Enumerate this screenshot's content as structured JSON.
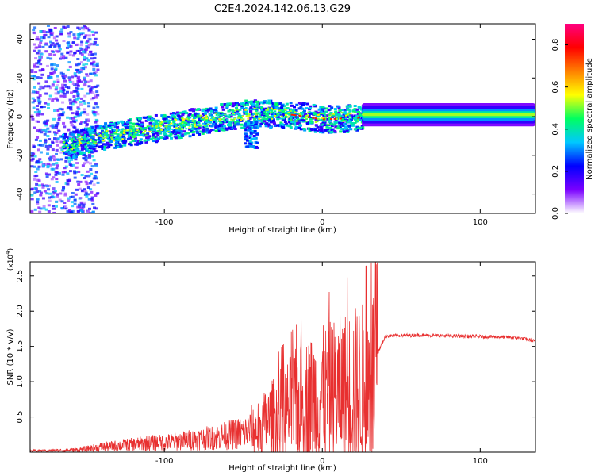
{
  "title": "C2E4.2024.142.06.13.G29",
  "chart_data": [
    {
      "type": "heatmap",
      "xlabel": "Height of straight line (km)",
      "ylabel": "Frequency (Hz)",
      "xlim": [
        -185,
        135
      ],
      "ylim": [
        -50,
        48
      ],
      "x_ticks": [
        -100,
        0,
        100
      ],
      "y_ticks": [
        -40,
        -20,
        0,
        20,
        40
      ],
      "colorbar": {
        "label": "Normalized spectral amplitude",
        "range": [
          0.0,
          0.9
        ],
        "ticks": [
          0.0,
          0.2,
          0.4,
          0.6,
          0.8
        ],
        "colors": [
          "#ffffff",
          "#7a00ff",
          "#0000ff",
          "#00c8ff",
          "#00ff60",
          "#ffff00",
          "#ff8000",
          "#ff0000",
          "#ff0080"
        ]
      },
      "ridge": [
        {
          "x": -165,
          "f": -15
        },
        {
          "x": -140,
          "f": -10
        },
        {
          "x": -110,
          "f": -6
        },
        {
          "x": -80,
          "f": -2
        },
        {
          "x": -50,
          "f": 2
        },
        {
          "x": -25,
          "f": 2
        },
        {
          "x": 0,
          "f": -1
        },
        {
          "x": 25,
          "f": 0
        },
        {
          "x": 60,
          "f": 1
        },
        {
          "x": 100,
          "f": 1
        },
        {
          "x": 133,
          "f": 0
        }
      ]
    },
    {
      "type": "line",
      "xlabel": "Height of straight line (km)",
      "ylabel": "SNR (10 * v/v)",
      "exponent_label": "(x10",
      "exponent": "4",
      "exponent_close": ")",
      "xlim": [
        -185,
        135
      ],
      "ylim": [
        0,
        2.7
      ],
      "x_ticks": [
        -100,
        0,
        100
      ],
      "y_ticks": [
        0.5,
        1.0,
        1.5,
        2.0,
        2.5
      ],
      "color": "#e83030",
      "series": [
        {
          "x": [
            -185,
            -160,
            -150,
            -140,
            -130,
            -120,
            -110,
            -100,
            -90,
            -80,
            -70,
            -60,
            -50,
            -40,
            -30,
            -20,
            -10,
            0,
            10,
            20,
            30,
            35,
            40,
            60,
            80,
            100,
            120,
            130,
            135
          ],
          "y": [
            0.02,
            0.03,
            0.05,
            0.08,
            0.1,
            0.12,
            0.14,
            0.15,
            0.17,
            0.2,
            0.22,
            0.26,
            0.3,
            0.38,
            0.55,
            0.7,
            0.82,
            0.9,
            0.98,
            1.05,
            1.1,
            1.4,
            1.65,
            1.66,
            1.65,
            1.64,
            1.63,
            1.6,
            1.57
          ]
        }
      ]
    }
  ]
}
